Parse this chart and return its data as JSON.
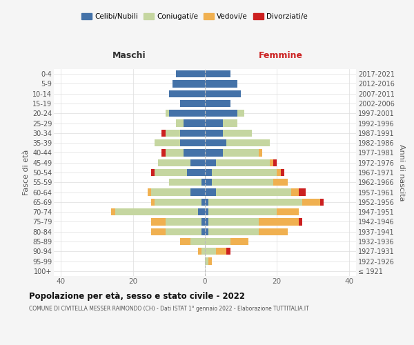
{
  "age_groups": [
    "100+",
    "95-99",
    "90-94",
    "85-89",
    "80-84",
    "75-79",
    "70-74",
    "65-69",
    "60-64",
    "55-59",
    "50-54",
    "45-49",
    "40-44",
    "35-39",
    "30-34",
    "25-29",
    "20-24",
    "15-19",
    "10-14",
    "5-9",
    "0-4"
  ],
  "birth_years": [
    "≤ 1921",
    "1922-1926",
    "1927-1931",
    "1932-1936",
    "1937-1941",
    "1942-1946",
    "1947-1951",
    "1952-1956",
    "1957-1961",
    "1962-1966",
    "1967-1971",
    "1972-1976",
    "1977-1981",
    "1982-1986",
    "1987-1991",
    "1992-1996",
    "1997-2001",
    "2002-2006",
    "2007-2011",
    "2012-2016",
    "2017-2021"
  ],
  "colors": {
    "celibi": "#4472a8",
    "coniugati": "#c5d6a0",
    "vedovi": "#f0b050",
    "divorziati": "#cc2020"
  },
  "maschi": {
    "celibi": [
      0,
      0,
      0,
      0,
      1,
      1,
      2,
      1,
      4,
      1,
      5,
      4,
      6,
      7,
      7,
      6,
      10,
      7,
      10,
      9,
      8
    ],
    "coniugati": [
      0,
      0,
      1,
      4,
      10,
      10,
      23,
      13,
      11,
      9,
      9,
      9,
      5,
      7,
      4,
      2,
      1,
      0,
      0,
      0,
      0
    ],
    "vedovi": [
      0,
      0,
      1,
      3,
      4,
      4,
      1,
      1,
      1,
      0,
      0,
      0,
      0,
      0,
      0,
      0,
      0,
      0,
      0,
      0,
      0
    ],
    "divorziati": [
      0,
      0,
      0,
      0,
      0,
      0,
      0,
      0,
      0,
      0,
      1,
      0,
      1,
      0,
      1,
      0,
      0,
      0,
      0,
      0,
      0
    ]
  },
  "femmine": {
    "celibi": [
      0,
      0,
      0,
      0,
      1,
      1,
      1,
      1,
      3,
      2,
      2,
      3,
      5,
      6,
      5,
      5,
      9,
      7,
      10,
      9,
      7
    ],
    "coniugati": [
      0,
      1,
      3,
      7,
      14,
      14,
      19,
      26,
      21,
      17,
      18,
      15,
      10,
      12,
      8,
      4,
      2,
      0,
      0,
      0,
      0
    ],
    "vedovi": [
      0,
      1,
      3,
      5,
      8,
      11,
      6,
      5,
      2,
      4,
      1,
      1,
      1,
      0,
      0,
      0,
      0,
      0,
      0,
      0,
      0
    ],
    "divorziati": [
      0,
      0,
      1,
      0,
      0,
      1,
      0,
      1,
      2,
      0,
      1,
      1,
      0,
      0,
      0,
      0,
      0,
      0,
      0,
      0,
      0
    ]
  },
  "xlim": 42,
  "title": "Popolazione per età, sesso e stato civile - 2022",
  "subtitle": "COMUNE DI CIVITELLA MESSER RAIMONDO (CH) - Dati ISTAT 1° gennaio 2022 - Elaborazione TUTTITALIA.IT",
  "ylabel_left": "Fasce di età",
  "ylabel_right": "Anni di nascita",
  "xlabel_maschi": "Maschi",
  "xlabel_femmine": "Femmine",
  "bg_color": "#f5f5f5",
  "plot_bg": "#ffffff"
}
